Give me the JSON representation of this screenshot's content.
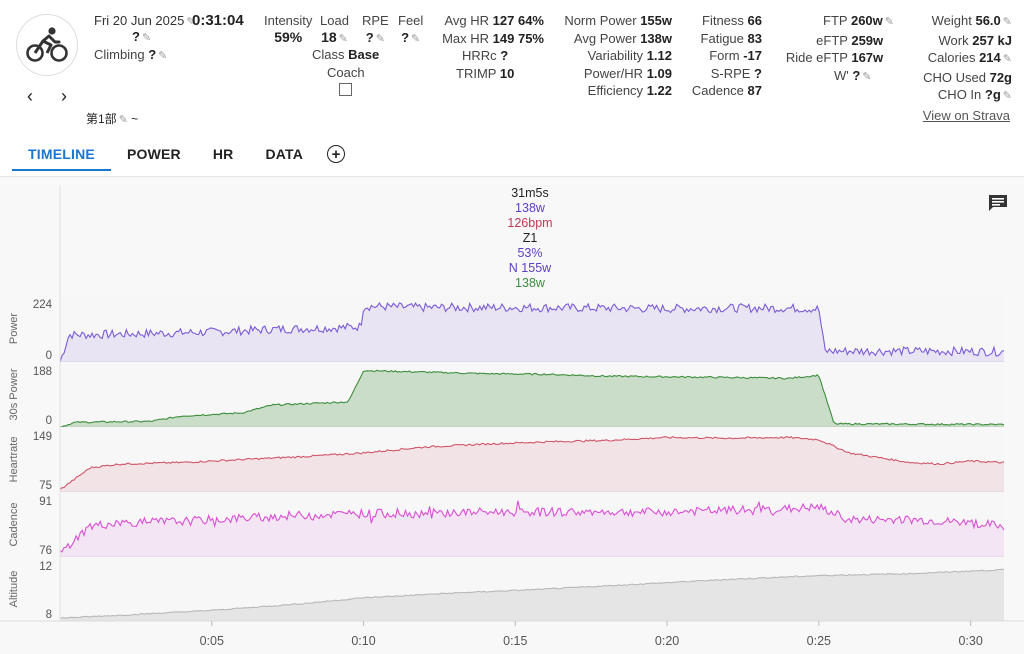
{
  "header": {
    "date": "Fri 20 Jun 2025",
    "duration": "0:31:04",
    "title_value": "?",
    "climbing_label": "Climbing",
    "climbing_value": "?",
    "segment_label": "第1部",
    "segment_value": "~",
    "view_on_strava": "View on Strava"
  },
  "stats": {
    "intensity": {
      "label": "Intensity",
      "value": "59%"
    },
    "load": {
      "label": "Load",
      "value": "18"
    },
    "rpe": {
      "label": "RPE",
      "value": "?"
    },
    "feel": {
      "label": "Feel",
      "value": "?"
    },
    "class": {
      "label": "Class",
      "value": "Base"
    },
    "coach": {
      "label": "Coach"
    },
    "hr": [
      {
        "label": "Avg HR",
        "value": "127",
        "extra": "64%"
      },
      {
        "label": "Max HR",
        "value": "149",
        "extra": "75%"
      },
      {
        "label": "HRRc",
        "value": "?",
        "extra": ""
      },
      {
        "label": "TRIMP",
        "value": "10",
        "extra": ""
      }
    ],
    "power": [
      {
        "label": "Norm Power",
        "value": "155w"
      },
      {
        "label": "Avg Power",
        "value": "138w"
      },
      {
        "label": "Variability",
        "value": "1.12"
      },
      {
        "label": "Power/HR",
        "value": "1.09"
      },
      {
        "label": "Efficiency",
        "value": "1.22"
      }
    ],
    "fitness": [
      {
        "label": "Fitness",
        "value": "66"
      },
      {
        "label": "Fatigue",
        "value": "83"
      },
      {
        "label": "Form",
        "value": "-17"
      },
      {
        "label": "S-RPE",
        "value": "?"
      },
      {
        "label": "Cadence",
        "value": "87"
      }
    ],
    "ftp": [
      {
        "label": "FTP",
        "value": "260w"
      },
      {
        "label": "eFTP",
        "value": "259w"
      },
      {
        "label": "Ride eFTP",
        "value": "167w"
      },
      {
        "label": "W'",
        "value": "?"
      }
    ],
    "body": [
      {
        "label": "Weight",
        "value": "56.0"
      },
      {
        "label": "Work",
        "value": "257 kJ"
      },
      {
        "label": "Calories",
        "value": "214"
      },
      {
        "label": "CHO Used",
        "value": "72g"
      },
      {
        "label": "CHO In",
        "value": "?g"
      }
    ]
  },
  "tabs": [
    "TIMELINE",
    "POWER",
    "HR",
    "DATA"
  ],
  "active_tab": "TIMELINE",
  "hover": {
    "time": "31m5s",
    "power": "138w",
    "hr": "126bpm",
    "zone": "Z1",
    "pct": "53%",
    "np": "N 155w",
    "power30": "138w"
  },
  "colors": {
    "accent": "#1976d2",
    "power": "#7b5bd6",
    "power30": "#3e8e3e",
    "hr": "#d0566a",
    "cadence": "#d94fd6",
    "altitude": "#b8b8b8"
  },
  "chart_data": {
    "type": "line",
    "x_ticks": [
      "0:05",
      "0:10",
      "0:15",
      "0:20",
      "0:25",
      "0:30"
    ],
    "xlim_minutes": [
      0,
      31.1
    ],
    "series": [
      {
        "name": "Power",
        "ylim": [
          0,
          224
        ],
        "tick_labels": [
          "224",
          "0"
        ],
        "x": [
          0,
          0.3,
          1,
          3,
          5,
          7,
          9,
          9.9,
          10,
          12,
          15,
          18,
          20,
          22,
          24,
          25,
          25.2,
          27,
          29,
          31
        ],
        "y": [
          0,
          100,
          100,
          105,
          110,
          120,
          125,
          130,
          205,
          200,
          200,
          198,
          196,
          198,
          198,
          195,
          40,
          40,
          40,
          38
        ]
      },
      {
        "name": "30s Power",
        "ylim": [
          0,
          188
        ],
        "tick_labels": [
          "188",
          "0"
        ],
        "x": [
          0,
          0.5,
          3,
          4,
          6,
          7,
          9.5,
          10,
          12,
          14,
          16,
          18,
          20,
          22,
          24,
          25,
          25.5,
          31
        ],
        "y": [
          0,
          15,
          18,
          35,
          45,
          70,
          80,
          180,
          175,
          170,
          168,
          162,
          160,
          158,
          155,
          165,
          10,
          8
        ]
      },
      {
        "name": "Heartrate",
        "ylim": [
          72,
          152
        ],
        "tick_labels": [
          "149",
          "75"
        ],
        "x": [
          0,
          0.5,
          1,
          2,
          4,
          6,
          8,
          10,
          12,
          14,
          16,
          18,
          20,
          22,
          24,
          25,
          26,
          28,
          29,
          30,
          31
        ],
        "y": [
          75,
          90,
          105,
          110,
          112,
          116,
          120,
          125,
          133,
          137,
          140,
          142,
          146,
          145,
          146,
          143,
          125,
          112,
          110,
          114,
          112
        ]
      },
      {
        "name": "Cadence",
        "ylim": [
          74,
          93
        ],
        "tick_labels": [
          "91",
          "76"
        ],
        "x": [
          0,
          0.3,
          1,
          2,
          4,
          6,
          8,
          10,
          12,
          14,
          16,
          18,
          20,
          22,
          24,
          25,
          26,
          28,
          30,
          31
        ],
        "y": [
          75,
          78,
          84,
          85,
          85.5,
          86.5,
          87.5,
          88,
          88,
          88.5,
          88.5,
          88.5,
          88.5,
          89,
          89.5,
          90,
          86,
          86,
          85,
          84
        ]
      },
      {
        "name": "Altitude",
        "ylim": [
          7,
          13
        ],
        "tick_labels": [
          "12",
          "8"
        ],
        "x": [
          0,
          2,
          5,
          8,
          10,
          13,
          16,
          19,
          22,
          25,
          28,
          31
        ],
        "y": [
          7.3,
          7.6,
          8.1,
          8.8,
          9.4,
          9.9,
          10.3,
          10.8,
          11.3,
          11.7,
          11.9,
          12.3
        ]
      }
    ]
  }
}
